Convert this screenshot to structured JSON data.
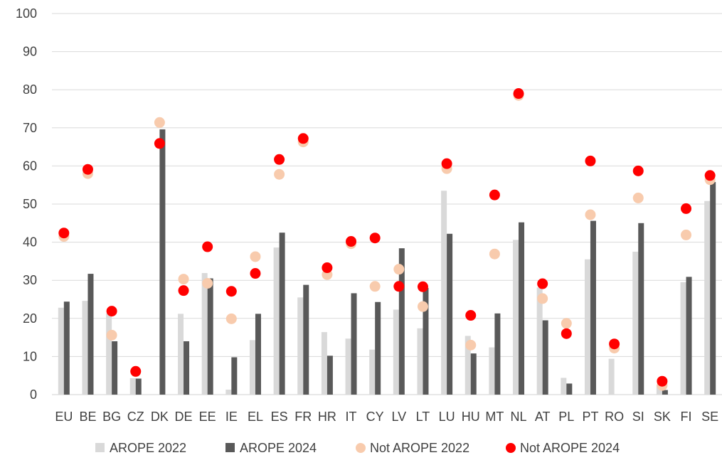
{
  "chart_data": {
    "type": "bar",
    "categories": [
      "EU",
      "BE",
      "BG",
      "CZ",
      "DK",
      "DE",
      "EE",
      "IE",
      "EL",
      "ES",
      "FR",
      "HR",
      "IT",
      "CY",
      "LV",
      "LT",
      "LU",
      "HU",
      "MT",
      "NL",
      "AT",
      "PL",
      "PT",
      "RO",
      "SI",
      "SK",
      "FI",
      "SE"
    ],
    "ylim": [
      0,
      100
    ],
    "yticks": [
      0,
      10,
      20,
      30,
      40,
      50,
      60,
      70,
      80,
      90,
      100
    ],
    "grid": true,
    "legend_position": "bottom",
    "series": [
      {
        "name": "AROPE 2022",
        "kind": "bar",
        "color": "#d9d9d9",
        "values": [
          22.8,
          24.6,
          21.3,
          4.3,
          null,
          21.2,
          31.9,
          1.3,
          14.3,
          38.6,
          25.5,
          16.4,
          14.7,
          11.8,
          22.3,
          17.4,
          53.5,
          15.4,
          12.4,
          40.6,
          28.1,
          4.4,
          35.5,
          9.4,
          37.5,
          2.6,
          29.5,
          50.8
        ]
      },
      {
        "name": "AROPE 2024",
        "kind": "bar",
        "color": "#595959",
        "values": [
          24.4,
          31.7,
          14.0,
          4.2,
          69.6,
          14.0,
          30.5,
          9.8,
          21.2,
          42.5,
          28.8,
          10.2,
          26.6,
          24.3,
          38.4,
          28.0,
          42.2,
          10.8,
          21.3,
          45.2,
          19.5,
          2.9,
          45.6,
          null,
          45.0,
          1.2,
          30.9,
          55.8
        ]
      },
      {
        "name": "Not AROPE 2022",
        "kind": "dot",
        "color": "#f8cbad",
        "values": [
          41.5,
          58.0,
          15.6,
          6.0,
          71.4,
          30.3,
          29.2,
          19.9,
          36.2,
          57.8,
          66.3,
          31.5,
          39.6,
          28.4,
          32.9,
          23.1,
          59.3,
          13.0,
          36.9,
          78.5,
          25.2,
          18.7,
          47.2,
          12.2,
          51.6,
          2.4,
          41.9,
          56.4
        ]
      },
      {
        "name": "Not AROPE 2024",
        "kind": "dot",
        "color": "#ff0000",
        "values": [
          42.4,
          59.1,
          21.9,
          6.1,
          65.9,
          27.3,
          38.8,
          27.1,
          31.8,
          61.7,
          67.2,
          33.3,
          40.2,
          41.1,
          28.4,
          28.3,
          60.6,
          20.8,
          52.4,
          79.0,
          29.1,
          16.0,
          61.3,
          13.3,
          58.7,
          3.5,
          48.8,
          57.5
        ]
      }
    ]
  }
}
